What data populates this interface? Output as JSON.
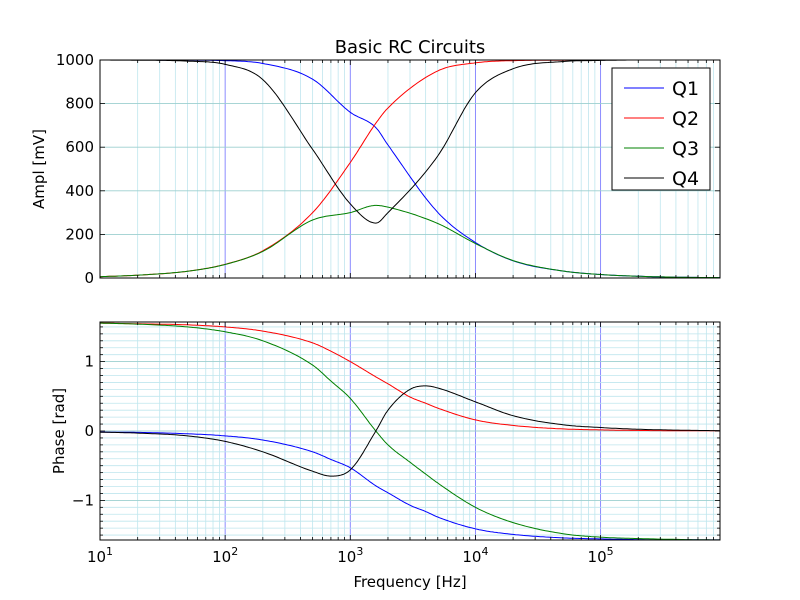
{
  "chart_data": [
    {
      "type": "line",
      "title": "Basic RC Circuits",
      "ylabel": "Ampl [mV]",
      "xscale": "log",
      "xlim": [
        10,
        900000
      ],
      "ylim": [
        0,
        1000
      ],
      "x_ticks": [
        {
          "value": 10,
          "base": "10",
          "exp": "1"
        },
        {
          "value": 100,
          "base": "10",
          "exp": "2"
        },
        {
          "value": 1000,
          "base": "10",
          "exp": "3"
        },
        {
          "value": 10000,
          "base": "10",
          "exp": "4"
        },
        {
          "value": 100000,
          "base": "10",
          "exp": "5"
        }
      ],
      "y_ticks": [
        "0",
        "200",
        "400",
        "600",
        "800",
        "1000"
      ],
      "y_tick_values": [
        0,
        200,
        400,
        600,
        800,
        1000
      ],
      "grid": true,
      "legend_position": "top-right",
      "x": [
        10,
        20,
        50,
        100,
        200,
        500,
        1000,
        1600,
        2000,
        5000,
        10000,
        20000,
        50000,
        100000,
        200000,
        500000,
        900000
      ],
      "series": [
        {
          "name": "Q1",
          "color": "#0000ff",
          "values": [
            1000,
            1000,
            999,
            997,
            984,
            912,
            760,
            690,
            610,
            301,
            163,
            79,
            32,
            16,
            8,
            3,
            2
          ]
        },
        {
          "name": "Q2",
          "color": "#ff0000",
          "values": [
            6,
            13,
            31,
            63,
            125,
            300,
            530,
            710,
            780,
            950,
            987,
            997,
            999,
            1000,
            1000,
            1000,
            1000
          ]
        },
        {
          "name": "Q3",
          "color": "#008000",
          "values": [
            6,
            13,
            31,
            62,
            122,
            266,
            300,
            333,
            325,
            250,
            158,
            80,
            32,
            16,
            8,
            3,
            2
          ]
        },
        {
          "name": "Q4",
          "color": "#000000",
          "values": [
            1000,
            999,
            995,
            980,
            910,
            590,
            340,
            252,
            300,
            560,
            850,
            960,
            993,
            998,
            1000,
            1000,
            1000
          ]
        }
      ]
    },
    {
      "type": "line",
      "xlabel": "Frequency [Hz]",
      "ylabel": "Phase [rad]",
      "xscale": "log",
      "xlim": [
        10,
        900000
      ],
      "ylim": [
        -1.5708,
        1.5708
      ],
      "x_ticks": [
        {
          "value": 10,
          "base": "10",
          "exp": "1"
        },
        {
          "value": 100,
          "base": "10",
          "exp": "2"
        },
        {
          "value": 1000,
          "base": "10",
          "exp": "3"
        },
        {
          "value": 10000,
          "base": "10",
          "exp": "4"
        },
        {
          "value": 100000,
          "base": "10",
          "exp": "5"
        }
      ],
      "y_ticks": [
        "−1",
        "0",
        "1"
      ],
      "y_tick_values": [
        -1,
        0,
        1
      ],
      "grid": true,
      "x": [
        10,
        20,
        50,
        100,
        200,
        500,
        700,
        1000,
        1600,
        2000,
        3000,
        4000,
        5000,
        10000,
        20000,
        50000,
        100000,
        200000,
        500000,
        900000
      ],
      "series": [
        {
          "name": "Q1",
          "color": "#0000ff",
          "values": [
            -0.016,
            -0.02,
            -0.04,
            -0.07,
            -0.13,
            -0.3,
            -0.41,
            -0.53,
            -0.79,
            -0.89,
            -1.07,
            -1.16,
            -1.24,
            -1.41,
            -1.49,
            -1.54,
            -1.555,
            -1.565,
            -1.568,
            -1.57
          ]
        },
        {
          "name": "Q2",
          "color": "#ff0000",
          "values": [
            1.555,
            1.545,
            1.53,
            1.5,
            1.44,
            1.27,
            1.15,
            1.0,
            0.78,
            0.68,
            0.49,
            0.4,
            0.33,
            0.16,
            0.08,
            0.03,
            0.016,
            0.008,
            0.003,
            0.002
          ]
        },
        {
          "name": "Q3",
          "color": "#008000",
          "values": [
            1.555,
            1.54,
            1.5,
            1.43,
            1.3,
            0.95,
            0.72,
            0.47,
            0.0,
            -0.2,
            -0.45,
            -0.62,
            -0.75,
            -1.1,
            -1.32,
            -1.48,
            -1.53,
            -1.55,
            -1.565,
            -1.57
          ]
        },
        {
          "name": "Q4",
          "color": "#000000",
          "values": [
            -0.016,
            -0.03,
            -0.07,
            -0.15,
            -0.3,
            -0.58,
            -0.65,
            -0.56,
            0.0,
            0.3,
            0.6,
            0.65,
            0.62,
            0.42,
            0.22,
            0.09,
            0.05,
            0.025,
            0.01,
            0.005
          ]
        }
      ]
    }
  ]
}
